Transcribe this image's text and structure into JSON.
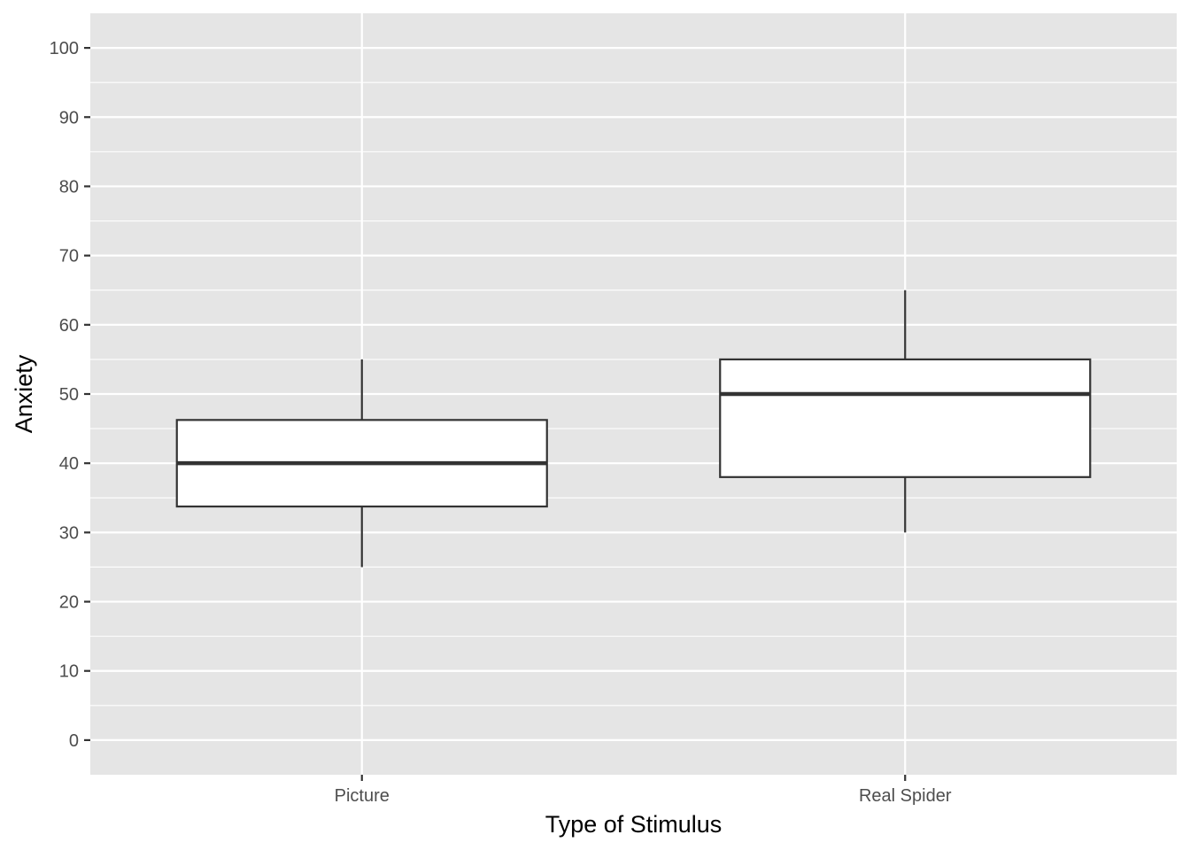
{
  "chart_data": {
    "type": "box",
    "xlabel": "Type of Stimulus",
    "ylabel": "Anxiety",
    "categories": [
      "Picture",
      "Real Spider"
    ],
    "ylim": [
      -5,
      105
    ],
    "yticks": [
      0,
      10,
      20,
      30,
      40,
      50,
      60,
      70,
      80,
      90,
      100
    ],
    "grid": true,
    "legend": "none",
    "boxes": [
      {
        "category": "Picture",
        "whisker_low": 25,
        "q1": 33.75,
        "median": 40,
        "q3": 46.25,
        "whisker_high": 55
      },
      {
        "category": "Real Spider",
        "whisker_low": 30,
        "q1": 38,
        "median": 50,
        "q3": 55,
        "whisker_high": 65
      }
    ],
    "colors": {
      "panel_background": "#e5e5e5",
      "grid": "#ffffff",
      "box_fill": "#ffffff",
      "box_stroke": "#333333",
      "tick_label": "#4d4d4d"
    }
  }
}
